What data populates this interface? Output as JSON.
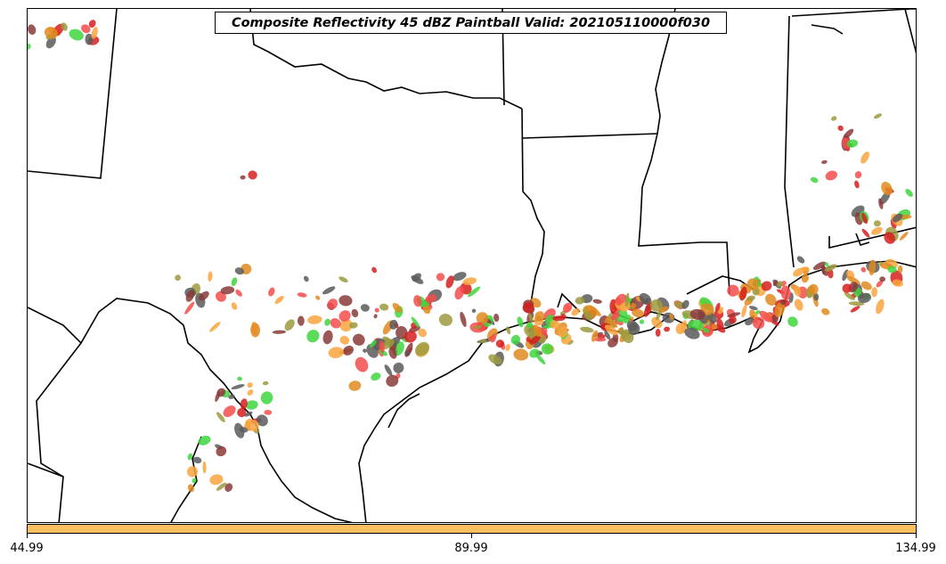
{
  "title": "Composite Reflectivity 45 dBZ Paintball Valid: 202105110000f030",
  "colorbar": {
    "color": "#fcbf5f",
    "ticks": [
      "44.99",
      "89.99",
      "134.99"
    ]
  },
  "map": {
    "region": "South-central United States / Texas Gulf Coast",
    "boundary_color": "#000000",
    "paintball_colors": [
      "#f44d4d",
      "#8b3a3a",
      "#f9a640",
      "#9c9a3e",
      "#3ed63e",
      "#5a5a5a",
      "#e08a20",
      "#d61e1e"
    ]
  }
}
